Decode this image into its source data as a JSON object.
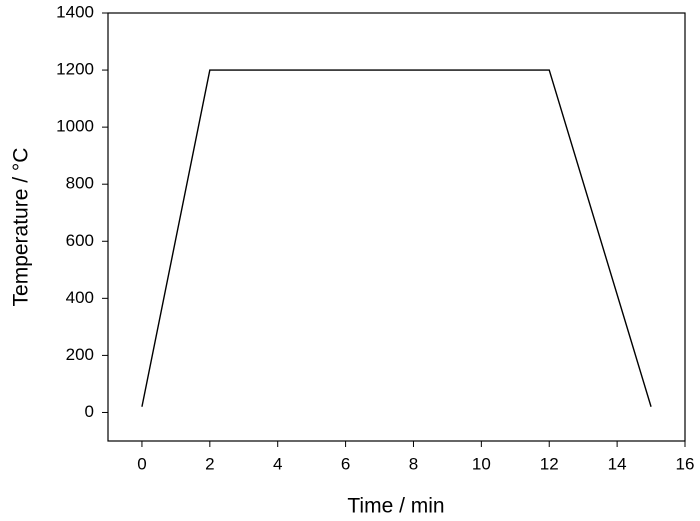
{
  "chart_data": {
    "type": "line",
    "x_label": "Time / min",
    "y_label": "Temperature / °C",
    "series": [
      {
        "color": "#000000",
        "x": [
          0,
          2,
          12,
          15
        ],
        "values": [
          20,
          1200,
          1200,
          20
        ]
      }
    ],
    "xlim": [
      -1,
      16
    ],
    "xticks": [
      0,
      2,
      4,
      6,
      8,
      10,
      12,
      14,
      16
    ],
    "ylim": [
      -100,
      1400
    ],
    "yticks": [
      0,
      200,
      400,
      600,
      800,
      1000,
      1200,
      1400
    ],
    "grid": false
  }
}
